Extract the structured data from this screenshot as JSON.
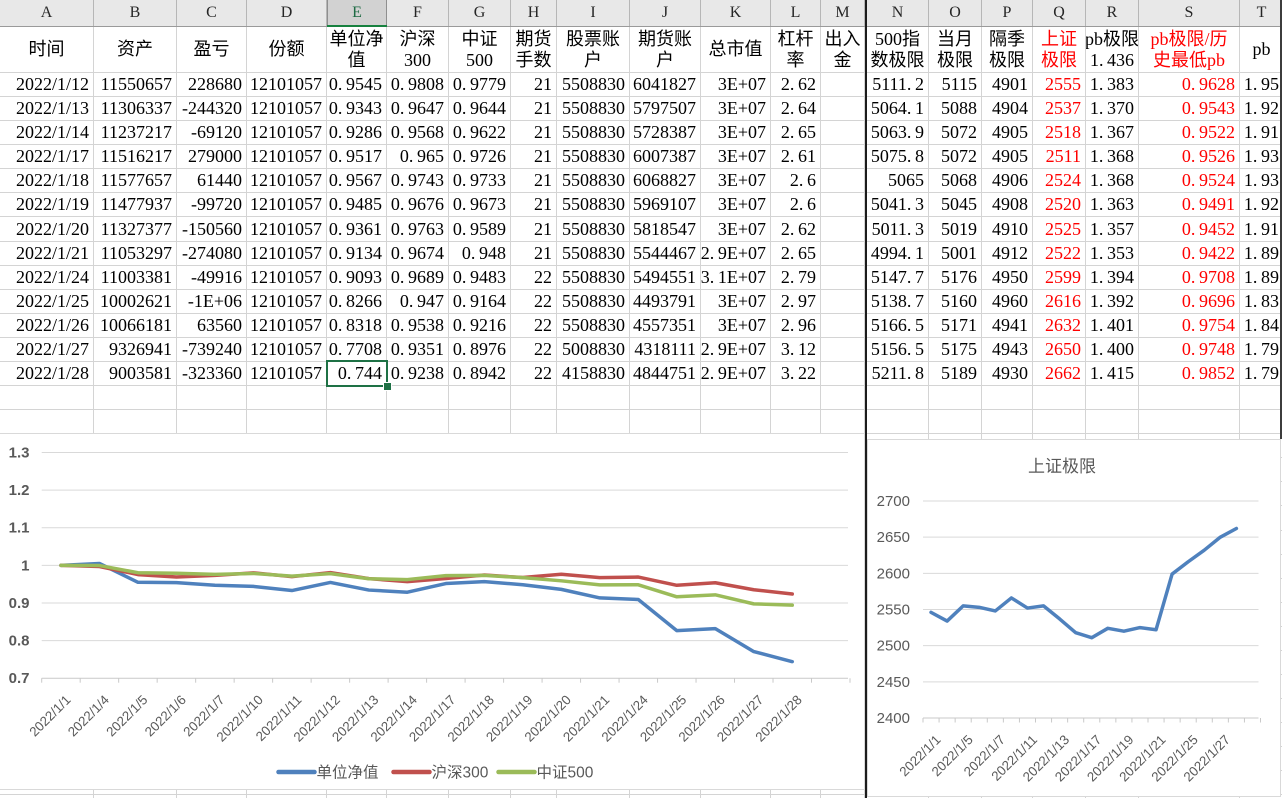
{
  "sheet": {
    "column_letters": [
      "A",
      "B",
      "C",
      "D",
      "E",
      "F",
      "G",
      "H",
      "I",
      "J",
      "K",
      "L",
      "M",
      "N",
      "O",
      "P",
      "Q",
      "R",
      "S",
      "T"
    ],
    "selected_column_letter": "E",
    "selected_cell": {
      "column": "E",
      "value": "0.744",
      "row_date": "2022/1/28"
    },
    "header_row": [
      {
        "col": "A",
        "lines": [
          "时间"
        ]
      },
      {
        "col": "B",
        "lines": [
          "资产"
        ]
      },
      {
        "col": "C",
        "lines": [
          "盈亏"
        ]
      },
      {
        "col": "D",
        "lines": [
          "份额"
        ]
      },
      {
        "col": "E",
        "lines": [
          "单位净",
          "值"
        ]
      },
      {
        "col": "F",
        "lines": [
          "沪深",
          "300"
        ]
      },
      {
        "col": "G",
        "lines": [
          "中证",
          "500"
        ]
      },
      {
        "col": "H",
        "lines": [
          "期货",
          "手数"
        ]
      },
      {
        "col": "I",
        "lines": [
          "股票账",
          "户"
        ]
      },
      {
        "col": "J",
        "lines": [
          "期货账",
          "户"
        ]
      },
      {
        "col": "K",
        "lines": [
          "总市值"
        ]
      },
      {
        "col": "L",
        "lines": [
          "杠杆",
          "率"
        ]
      },
      {
        "col": "M",
        "lines": [
          "出入",
          "金"
        ]
      },
      {
        "col": "N",
        "lines": [
          "500指",
          "数极限"
        ]
      },
      {
        "col": "O",
        "lines": [
          "当月",
          "极限"
        ]
      },
      {
        "col": "P",
        "lines": [
          "隔季",
          "极限"
        ]
      },
      {
        "col": "Q",
        "lines": [
          "上证",
          "极限"
        ],
        "red": true
      },
      {
        "col": "R",
        "lines": [
          "pb极限",
          "1.436"
        ]
      },
      {
        "col": "S",
        "lines": [
          "pb极限/历",
          "史最低pb"
        ],
        "red": true
      },
      {
        "col": "T",
        "lines": [
          "pb"
        ]
      }
    ],
    "red_value_columns": [
      "Q",
      "S"
    ],
    "rows": [
      [
        "2022/1/12",
        "11550657",
        "228680",
        "12101057",
        "0.9545",
        "0.9808",
        "0.9779",
        "21",
        "5508830",
        "6041827",
        "3E+07",
        "2.62",
        "",
        "5111.2",
        "5115",
        "4901",
        "2555",
        "1.383",
        "0.9628",
        "1.95"
      ],
      [
        "2022/1/13",
        "11306337",
        "-244320",
        "12101057",
        "0.9343",
        "0.9647",
        "0.9644",
        "21",
        "5508830",
        "5797507",
        "3E+07",
        "2.64",
        "",
        "5064.1",
        "5088",
        "4904",
        "2537",
        "1.370",
        "0.9543",
        "1.92"
      ],
      [
        "2022/1/14",
        "11237217",
        "-69120",
        "12101057",
        "0.9286",
        "0.9568",
        "0.9622",
        "21",
        "5508830",
        "5728387",
        "3E+07",
        "2.65",
        "",
        "5063.9",
        "5072",
        "4905",
        "2518",
        "1.367",
        "0.9522",
        "1.91"
      ],
      [
        "2022/1/17",
        "11516217",
        "279000",
        "12101057",
        "0.9517",
        "0.965",
        "0.9726",
        "21",
        "5508830",
        "6007387",
        "3E+07",
        "2.61",
        "",
        "5075.8",
        "5072",
        "4905",
        "2511",
        "1.368",
        "0.9526",
        "1.93"
      ],
      [
        "2022/1/18",
        "11577657",
        "61440",
        "12101057",
        "0.9567",
        "0.9743",
        "0.9733",
        "21",
        "5508830",
        "6068827",
        "3E+07",
        "2.6",
        "",
        "5065",
        "5068",
        "4906",
        "2524",
        "1.368",
        "0.9524",
        "1.93"
      ],
      [
        "2022/1/19",
        "11477937",
        "-99720",
        "12101057",
        "0.9485",
        "0.9676",
        "0.9673",
        "21",
        "5508830",
        "5969107",
        "3E+07",
        "2.6",
        "",
        "5041.3",
        "5045",
        "4908",
        "2520",
        "1.363",
        "0.9491",
        "1.92"
      ],
      [
        "2022/1/20",
        "11327377",
        "-150560",
        "12101057",
        "0.9361",
        "0.9763",
        "0.9589",
        "21",
        "5508830",
        "5818547",
        "3E+07",
        "2.62",
        "",
        "5011.3",
        "5019",
        "4910",
        "2525",
        "1.357",
        "0.9452",
        "1.91"
      ],
      [
        "2022/1/21",
        "11053297",
        "-274080",
        "12101057",
        "0.9134",
        "0.9674",
        "0.948",
        "21",
        "5508830",
        "5544467",
        "2.9E+07",
        "2.65",
        "",
        "4994.1",
        "5001",
        "4912",
        "2522",
        "1.353",
        "0.9422",
        "1.89"
      ],
      [
        "2022/1/24",
        "11003381",
        "-49916",
        "12101057",
        "0.9093",
        "0.9689",
        "0.9483",
        "22",
        "5508830",
        "5494551",
        "3.1E+07",
        "2.79",
        "",
        "5147.7",
        "5176",
        "4950",
        "2599",
        "1.394",
        "0.9708",
        "1.89"
      ],
      [
        "2022/1/25",
        "10002621",
        "-1E+06",
        "12101057",
        "0.8266",
        "0.947",
        "0.9164",
        "22",
        "5508830",
        "4493791",
        "3E+07",
        "2.97",
        "",
        "5138.7",
        "5160",
        "4960",
        "2616",
        "1.392",
        "0.9696",
        "1.83"
      ],
      [
        "2022/1/26",
        "10066181",
        "63560",
        "12101057",
        "0.8318",
        "0.9538",
        "0.9216",
        "22",
        "5508830",
        "4557351",
        "3E+07",
        "2.96",
        "",
        "5166.5",
        "5171",
        "4941",
        "2632",
        "1.401",
        "0.9754",
        "1.84"
      ],
      [
        "2022/1/27",
        "9326941",
        "-739240",
        "12101057",
        "0.7708",
        "0.9351",
        "0.8976",
        "22",
        "5008830",
        "4318111",
        "2.9E+07",
        "3.12",
        "",
        "5156.5",
        "5175",
        "4943",
        "2650",
        "1.400",
        "0.9748",
        "1.79"
      ],
      [
        "2022/1/28",
        "9003581",
        "-323360",
        "12101057",
        "0.744",
        "0.9238",
        "0.8942",
        "22",
        "4158830",
        "4844751",
        "2.9E+07",
        "3.22",
        "",
        "5211.8",
        "5189",
        "4930",
        "2662",
        "1.415",
        "0.9852",
        "1.79"
      ]
    ],
    "colors": {
      "selection_green": "#1E7145",
      "header_underline_green": "#17813F",
      "red_text": "#FF0000",
      "gridline": "#D4D4D4",
      "header_strip_bg": "#E8E8E8",
      "selected_header_bg": "#D2D2D2",
      "freeze_divider": "#1C1C1C"
    }
  },
  "chart_data": [
    {
      "type": "line",
      "title": "",
      "x": [
        "2022/1/1",
        "2022/1/4",
        "2022/1/5",
        "2022/1/6",
        "2022/1/7",
        "2022/1/10",
        "2022/1/11",
        "2022/1/12",
        "2022/1/13",
        "2022/1/14",
        "2022/1/17",
        "2022/1/18",
        "2022/1/19",
        "2022/1/20",
        "2022/1/21",
        "2022/1/24",
        "2022/1/25",
        "2022/1/26",
        "2022/1/27",
        "2022/1/28"
      ],
      "series": [
        {
          "name": "单位净值",
          "color": "#4F81BD",
          "values": [
            1.0,
            1.005,
            0.955,
            0.954,
            0.947,
            0.944,
            0.933,
            0.9545,
            0.9343,
            0.9286,
            0.9517,
            0.9567,
            0.9485,
            0.9361,
            0.9134,
            0.9093,
            0.8266,
            0.8318,
            0.7708,
            0.744
          ]
        },
        {
          "name": "沪深300",
          "color": "#C0504D",
          "values": [
            1.0,
            0.997,
            0.9755,
            0.969,
            0.9735,
            0.98,
            0.97,
            0.9808,
            0.9647,
            0.9568,
            0.965,
            0.9743,
            0.9676,
            0.9763,
            0.9674,
            0.9689,
            0.947,
            0.9538,
            0.9351,
            0.9238
          ]
        },
        {
          "name": "中证500",
          "color": "#9BBB59",
          "values": [
            1.0,
            0.9995,
            0.9805,
            0.979,
            0.976,
            0.9785,
            0.9715,
            0.9779,
            0.9644,
            0.9622,
            0.9726,
            0.9733,
            0.9673,
            0.9589,
            0.948,
            0.9483,
            0.9164,
            0.9216,
            0.8976,
            0.8942
          ]
        }
      ],
      "ylim": [
        0.7,
        1.3
      ],
      "ytick_step": 0.1,
      "yticks": [
        "1.3",
        "1.2",
        "1.1",
        "1",
        "0.9",
        "0.8",
        "0.7"
      ],
      "grid": true,
      "legend_position": "bottom",
      "x_label_every": 1
    },
    {
      "type": "line",
      "title": "上证极限",
      "x": [
        "2022/1/1",
        "2022/1/4",
        "2022/1/5",
        "2022/1/6",
        "2022/1/7",
        "2022/1/10",
        "2022/1/11",
        "2022/1/12",
        "2022/1/13",
        "2022/1/14",
        "2022/1/17",
        "2022/1/18",
        "2022/1/19",
        "2022/1/20",
        "2022/1/21",
        "2022/1/24",
        "2022/1/25",
        "2022/1/26",
        "2022/1/27",
        "2022/1/28"
      ],
      "series": [
        {
          "name": "上证极限",
          "color": "#4F81BD",
          "values": [
            2546,
            2534,
            2555,
            2553,
            2548,
            2566,
            2552,
            2555,
            2537,
            2518,
            2511,
            2524,
            2520,
            2525,
            2522,
            2599,
            2616,
            2632,
            2650,
            2662
          ]
        }
      ],
      "ylim": [
        2400,
        2700
      ],
      "ytick_step": 50,
      "yticks": [
        "2700",
        "2650",
        "2600",
        "2550",
        "2500",
        "2450",
        "2400"
      ],
      "grid": true,
      "legend_position": "none",
      "x_label_every": 2
    }
  ]
}
